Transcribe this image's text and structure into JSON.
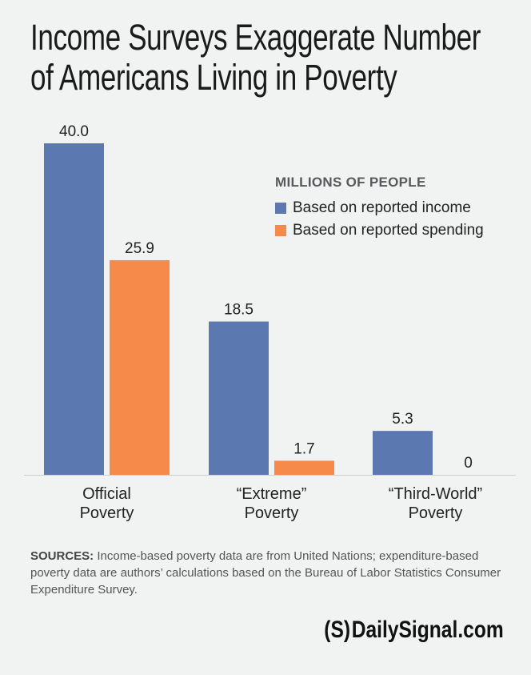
{
  "title_lines": [
    "Income Surveys Exaggerate Number",
    "of Americans Living in Poverty"
  ],
  "legend": {
    "title": "MILLIONS OF PEOPLE",
    "items": [
      "Based on reported income",
      "Based on reported spending"
    ]
  },
  "colors": {
    "income": "#5b79b0",
    "spending": "#f58a4b",
    "axis": "#cfcfcf"
  },
  "chart_data": {
    "type": "bar",
    "categories": [
      [
        "Official",
        "Poverty"
      ],
      [
        "“Extreme”",
        "Poverty"
      ],
      [
        "“Third-World”",
        "Poverty"
      ]
    ],
    "series": [
      {
        "name": "Based on reported income",
        "values": [
          40.0,
          18.5,
          5.3
        ],
        "labels": [
          "40.0",
          "18.5",
          "5.3"
        ]
      },
      {
        "name": "Based on reported spending",
        "values": [
          25.9,
          1.7,
          0
        ],
        "labels": [
          "25.9",
          "1.7",
          "0"
        ]
      }
    ],
    "ylim": [
      0,
      40
    ],
    "ylabel": "MILLIONS OF PEOPLE",
    "grid": false,
    "legend_position": "top-right"
  },
  "sources": {
    "label": "SOURCES:",
    "text": " Income-based poverty data are from United Nations; expenditure-based poverty data are authors’ calculations based on the Bureau of Labor Statistics Consumer Expenditure Survey."
  },
  "brand": {
    "mark": "(S)",
    "name": "DailySignal.com"
  }
}
